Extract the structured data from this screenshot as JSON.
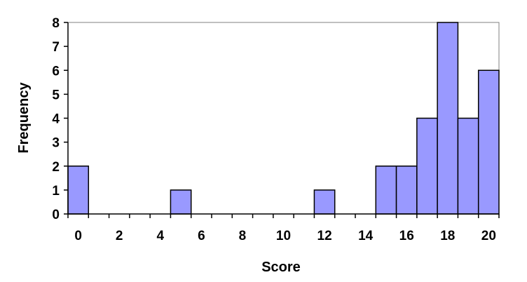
{
  "chart_data": {
    "type": "bar",
    "title": "",
    "xlabel": "Score",
    "ylabel": "Frequency",
    "bin_width": 1,
    "categories": [
      "0",
      "1",
      "2",
      "3",
      "4",
      "5",
      "6",
      "7",
      "8",
      "9",
      "10",
      "11",
      "12",
      "13",
      "14",
      "15",
      "16",
      "17",
      "18",
      "19",
      "20"
    ],
    "values": [
      2,
      0,
      0,
      0,
      0,
      1,
      0,
      0,
      0,
      0,
      0,
      0,
      1,
      0,
      0,
      2,
      2,
      4,
      8,
      4,
      6
    ],
    "xlim": [
      -0.5,
      20.5
    ],
    "ylim": [
      0,
      8
    ],
    "x_ticks": [
      "0",
      "2",
      "4",
      "6",
      "8",
      "10",
      "12",
      "14",
      "16",
      "18",
      "20"
    ],
    "y_ticks": [
      "0",
      "1",
      "2",
      "3",
      "4",
      "5",
      "6",
      "7",
      "8"
    ],
    "grid": false,
    "legend": "none",
    "bar_color": "#9999ff",
    "bar_edge_color": "#000000",
    "frame_color": "#808080"
  }
}
